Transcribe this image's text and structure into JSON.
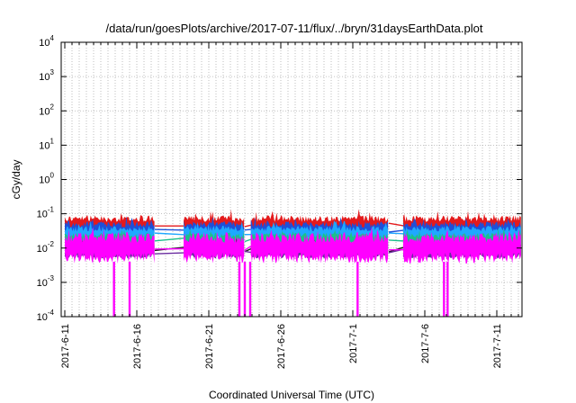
{
  "chart_data": {
    "type": "line",
    "title": "/data/run/goesPlots/archive/2017-07-11/flux/../bryn/31daysEarthData.plot",
    "xlabel": "Coordinated Universal Time (UTC)",
    "ylabel": "cGy/day",
    "y_scale": "log",
    "ylim": [
      0.0001,
      10000
    ],
    "xlim": [
      "2017-06-10T18:00",
      "2017-07-12T18:00"
    ],
    "y_ticks": [
      {
        "value": 0.0001,
        "base": "10",
        "exp": "-4"
      },
      {
        "value": 0.001,
        "base": "10",
        "exp": "-3"
      },
      {
        "value": 0.01,
        "base": "10",
        "exp": "-2"
      },
      {
        "value": 0.1,
        "base": "10",
        "exp": "-1"
      },
      {
        "value": 1,
        "base": "10",
        "exp": "0"
      },
      {
        "value": 10,
        "base": "10",
        "exp": "1"
      },
      {
        "value": 100,
        "base": "10",
        "exp": "2"
      },
      {
        "value": 1000,
        "base": "10",
        "exp": "3"
      },
      {
        "value": 10000,
        "base": "10",
        "exp": "4"
      }
    ],
    "x_ticks": [
      "2017-6-11",
      "2017-6-16",
      "2017-6-21",
      "2017-6-26",
      "2017-7-1",
      "2017-7-6",
      "2017-7-11"
    ],
    "x_tick_dates": [
      "2017-06-11",
      "2017-06-16",
      "2017-06-21",
      "2017-06-26",
      "2017-07-01",
      "2017-07-06",
      "2017-07-11"
    ],
    "grid": true,
    "data_segments": [
      [
        "2017-06-11T00:00",
        "2017-06-17T06:00"
      ],
      [
        "2017-06-19T06:00",
        "2017-06-23T12:00"
      ],
      [
        "2017-06-23T22:00",
        "2017-07-03T12:00"
      ],
      [
        "2017-07-04T12:00",
        "2017-07-12T18:00"
      ]
    ],
    "dropouts": [
      "2017-06-14T10:00",
      "2017-06-15T12:00",
      "2017-06-23T03:00",
      "2017-06-23T12:00",
      "2017-06-23T21:00",
      "2017-07-01T08:00",
      "2017-07-07T08:00",
      "2017-07-07T14:00"
    ],
    "dropout_floor": 0.0001,
    "series": [
      {
        "color": "#e41a1c",
        "low": 0.025,
        "high": 0.09
      },
      {
        "color": "#1f4fd8",
        "low": 0.018,
        "high": 0.06
      },
      {
        "color": "#1fa8ff",
        "low": 0.015,
        "high": 0.045
      },
      {
        "color": "#1cc08a",
        "low": 0.01,
        "high": 0.028
      },
      {
        "color": "#1a1a1a",
        "low": 0.006,
        "high": 0.014
      },
      {
        "color": "#6a2ca0",
        "low": 0.005,
        "high": 0.012
      },
      {
        "color": "#ff00ff",
        "low": 0.0035,
        "high": 0.03
      }
    ]
  }
}
